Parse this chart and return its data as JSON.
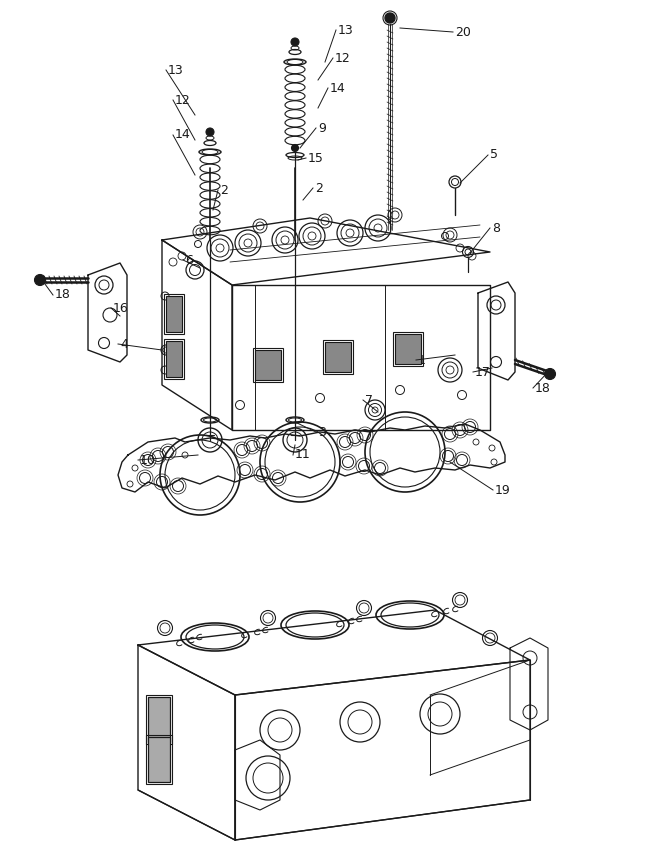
{
  "bg_color": "#ffffff",
  "lc": "#1a1a1a",
  "fig_width": 6.68,
  "fig_height": 8.61,
  "dpi": 100
}
